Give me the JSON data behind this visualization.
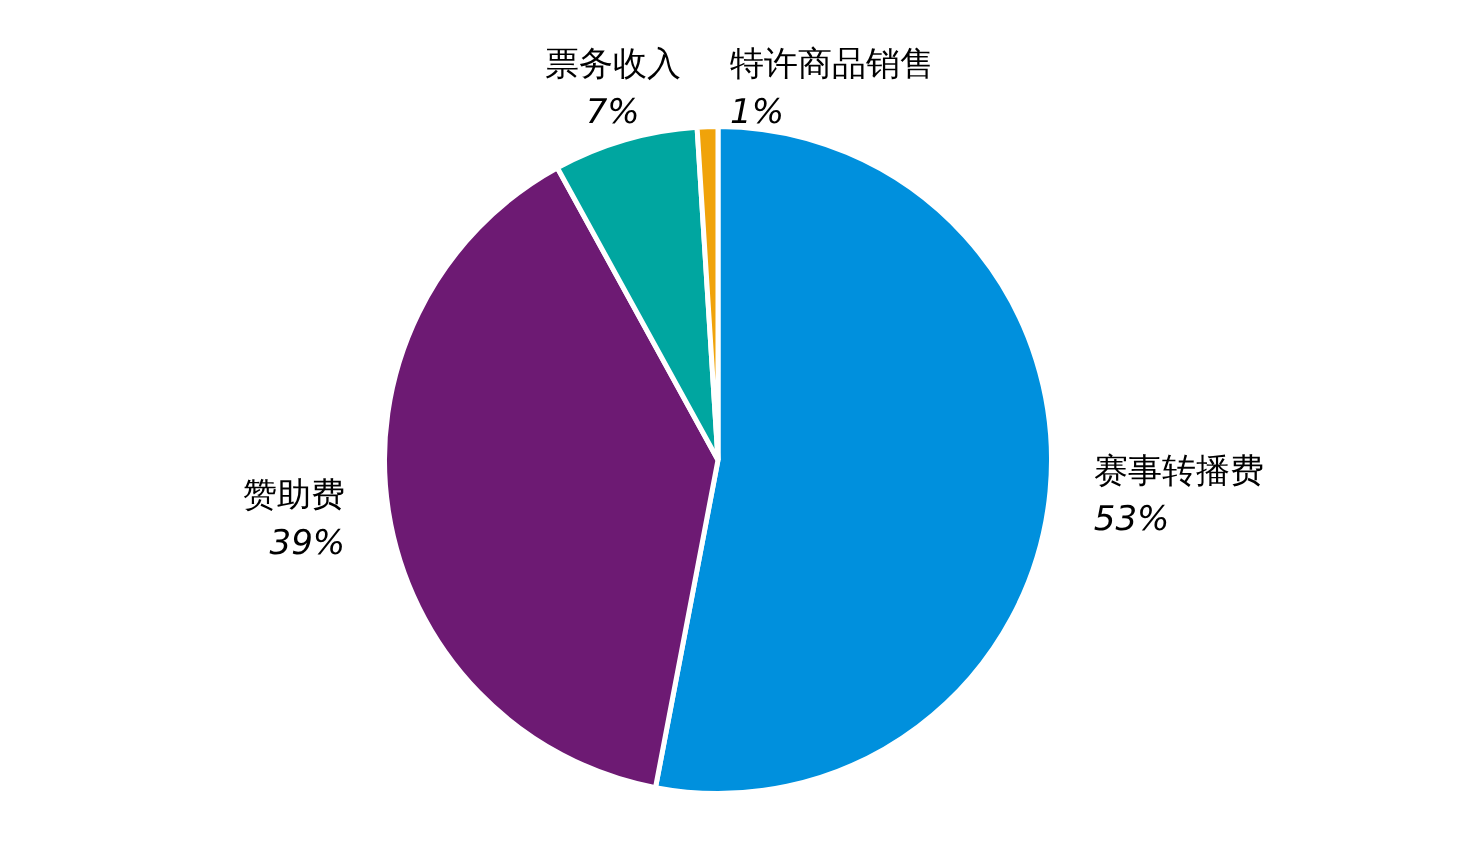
{
  "chart_data": {
    "type": "pie",
    "categories": [
      "赛事转播费",
      "赞助费",
      "票务收入",
      "特许商品销售"
    ],
    "values": [
      53,
      39,
      7,
      1
    ],
    "colors": [
      "#0090dd",
      "#6d1a73",
      "#00a6a0",
      "#f0a30a"
    ],
    "value_labels": [
      "53%",
      "39%",
      "7%",
      "1%"
    ],
    "legend": false
  }
}
